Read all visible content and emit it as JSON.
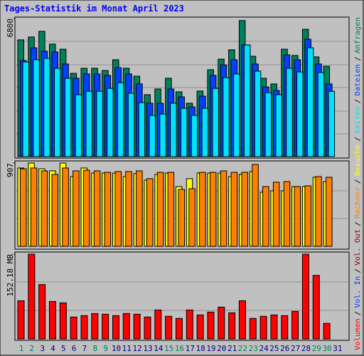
{
  "title": "Tages-Statistik im Monat April 2023",
  "legend_separator": "/",
  "chart_data": [
    {
      "type": "bar",
      "ylim": [
        0,
        6800
      ],
      "yticks": [
        6800
      ],
      "series": [
        {
          "name": "Seiten",
          "color": "#00e0ff",
          "values": [
            4660,
            4770,
            4840,
            4350,
            3860,
            3050,
            3220,
            3220,
            3360,
            3640,
            3120,
            2660,
            2030,
            2100,
            2630,
            2380,
            2030,
            2380,
            3360,
            3890,
            4070,
            5500,
            4210,
            3150,
            3050,
            4350,
            4170,
            5360,
            4140,
            3220,
            null
          ]
        },
        {
          "name": "Dateien",
          "color": "#0040ff",
          "values": [
            4730,
            5360,
            5190,
            5150,
            4560,
            3860,
            4070,
            4070,
            4000,
            4380,
            4070,
            3580,
            2630,
            2630,
            3330,
            2940,
            2450,
            2980,
            4000,
            4520,
            4770,
            5500,
            4560,
            3430,
            3260,
            5010,
            4770,
            5780,
            4560,
            3580,
            null
          ]
        },
        {
          "name": "Anfragen",
          "color": "#00805c",
          "values": [
            5750,
            5890,
            6170,
            5540,
            5290,
            4100,
            4350,
            4350,
            4240,
            4770,
            4350,
            3960,
            3050,
            3330,
            3860,
            3190,
            2630,
            3230,
            4280,
            4800,
            5260,
            6700,
            4940,
            3860,
            3580,
            5290,
            4980,
            6270,
            4910,
            4450,
            null
          ]
        }
      ]
    },
    {
      "type": "bar",
      "ylim": [
        0,
        907
      ],
      "yticks": [
        907
      ],
      "series": [
        {
          "name": "Rechner",
          "color": "#ff8000",
          "values": [
            845,
            853,
            822,
            783,
            853,
            822,
            829,
            822,
            806,
            814,
            814,
            822,
            737,
            806,
            806,
            620,
            628,
            806,
            806,
            822,
            806,
            806,
            891,
            651,
            698,
            705,
            651,
            659,
            760,
            752,
            null
          ]
        },
        {
          "name": "Besuche",
          "color": "#ffff00",
          "values": [
            853,
            907,
            845,
            822,
            907,
            760,
            853,
            798,
            798,
            798,
            760,
            791,
            721,
            783,
            798,
            651,
            737,
            798,
            798,
            798,
            760,
            783,
            814,
            589,
            605,
            605,
            651,
            651,
            752,
            705,
            null
          ]
        }
      ]
    },
    {
      "type": "bar",
      "ylim": [
        0,
        152.18
      ],
      "yticks": [
        {
          "value": 152.18,
          "label": "152.18 MB"
        }
      ],
      "categories": [
        "1",
        "2",
        "3",
        "4",
        "5",
        "6",
        "7",
        "8",
        "9",
        "10",
        "11",
        "12",
        "13",
        "14",
        "15",
        "16",
        "17",
        "18",
        "19",
        "20",
        "21",
        "22",
        "23",
        "24",
        "25",
        "26",
        "27",
        "28",
        "29",
        "30",
        "31"
      ],
      "category_colors": [
        "#00805c",
        "#00805c",
        "#000080",
        "#000080",
        "#000080",
        "#000080",
        "#000080",
        "#00805c",
        "#00805c",
        "#000080",
        "#000080",
        "#000080",
        "#000080",
        "#000080",
        "#00805c",
        "#00805c",
        "#000080",
        "#000080",
        "#000080",
        "#000080",
        "#000080",
        "#00805c",
        "#00805c",
        "#000080",
        "#000080",
        "#000080",
        "#000080",
        "#000080",
        "#00805c",
        "#00805c",
        "#000080"
      ],
      "series": [
        {
          "name": "Volumen",
          "color": "#ff0000",
          "values": [
            68.5,
            152.2,
            97.6,
            67.2,
            64.7,
            39.3,
            41.8,
            45.6,
            44.4,
            41.8,
            45.6,
            44.4,
            39.3,
            52.0,
            40.6,
            36.8,
            52.0,
            43.1,
            48.2,
            57.1,
            46.9,
            68.5,
            36.8,
            40.6,
            43.1,
            41.8,
            49.4,
            152.2,
            114.1,
            27.9,
            null
          ]
        },
        {
          "name": "Vol. In",
          "color": "#0040ff"
        },
        {
          "name": "Vol. Out",
          "color": "#800000"
        }
      ]
    }
  ]
}
